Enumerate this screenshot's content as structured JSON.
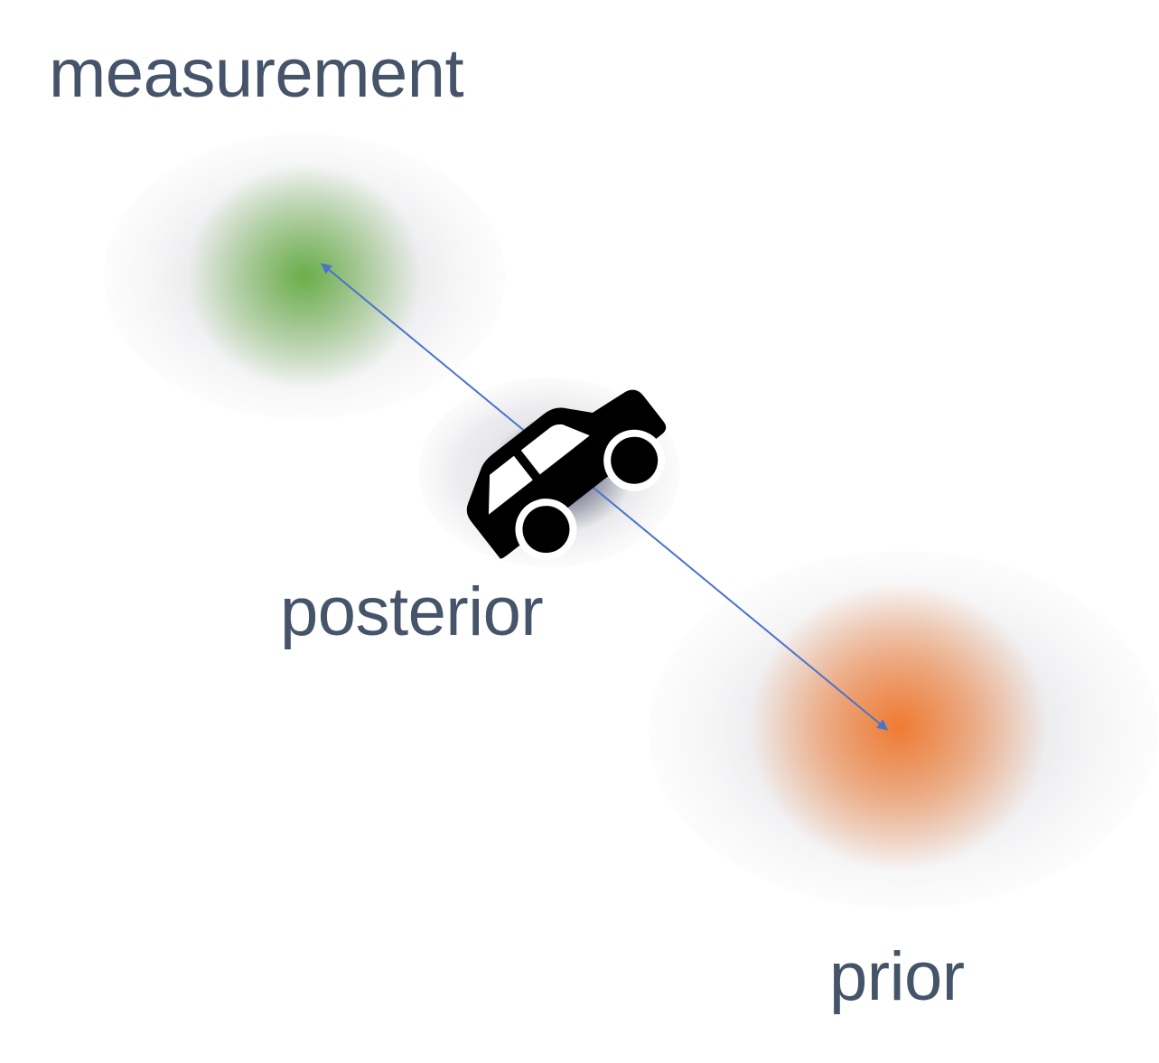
{
  "labels": {
    "measurement": "measurement",
    "posterior": "posterior",
    "prior": "prior"
  },
  "colors": {
    "label_text": "#46546a",
    "measurement_core": "#6bae4a",
    "prior_core": "#f07b33",
    "posterior_shadow": "#2b3450",
    "halo_gray": "#e4e4e6",
    "arrow": "#4a74c9",
    "car": "#000000"
  },
  "icons": {
    "vehicle": "car-icon"
  }
}
